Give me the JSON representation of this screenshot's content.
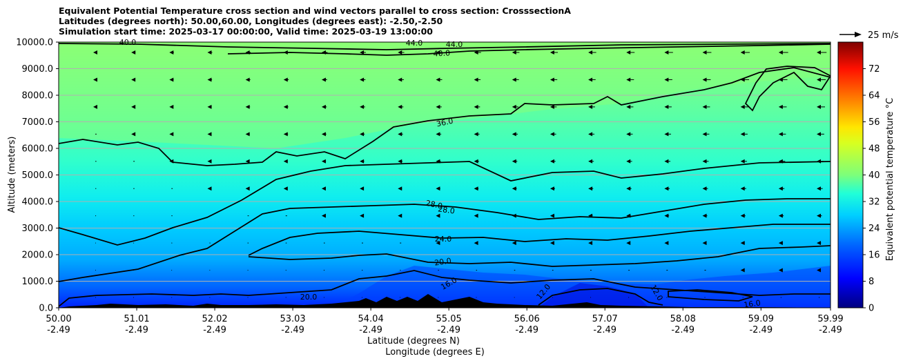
{
  "chart_data": {
    "type": "heatmap",
    "title_lines": [
      "Equivalent Potential Temperature cross section and wind vectors parallel to cross section: CrosssectionA",
      "Latitudes (degrees north): 50.00,60.00, Longitudes (degrees east): -2.50,-2.50",
      "Simulation start time: 2025-03-17 00:00:00, Valid time: 2025-03-19 13:00:00"
    ],
    "ylabel": "Altitude (meters)",
    "xlabel_lines": [
      "Latitude (degrees N)",
      "Longitude (degrees E)"
    ],
    "xlim": [
      50.0,
      59.99
    ],
    "ylim": [
      0,
      10000
    ],
    "x_ticks": [
      {
        "lat": "50.00",
        "lon": "-2.49"
      },
      {
        "lat": "51.01",
        "lon": "-2.49"
      },
      {
        "lat": "52.02",
        "lon": "-2.49"
      },
      {
        "lat": "53.03",
        "lon": "-2.49"
      },
      {
        "lat": "54.04",
        "lon": "-2.49"
      },
      {
        "lat": "55.05",
        "lon": "-2.49"
      },
      {
        "lat": "56.06",
        "lon": "-2.49"
      },
      {
        "lat": "57.07",
        "lon": "-2.49"
      },
      {
        "lat": "58.08",
        "lon": "-2.49"
      },
      {
        "lat": "59.09",
        "lon": "-2.49"
      },
      {
        "lat": "59.99",
        "lon": "-2.49"
      }
    ],
    "y_ticks": [
      "0.0",
      "1000.0",
      "2000.0",
      "3000.0",
      "4000.0",
      "5000.0",
      "6000.0",
      "7000.0",
      "8000.0",
      "9000.0",
      "10000.0"
    ],
    "grid": "horizontal",
    "colorbar": {
      "label": "Equivalent potential temperature °C",
      "range": [
        0,
        80
      ],
      "ticks": [
        "0",
        "8",
        "16",
        "24",
        "32",
        "40",
        "48",
        "56",
        "64",
        "72"
      ],
      "colormap": "jet"
    },
    "quiver_key": {
      "label": "25 m/s",
      "speed": 25
    },
    "contour_labels": [
      "44.0",
      "40.0",
      "36.0",
      "28.0",
      "24.0",
      "20.0",
      "16.0",
      "12.0"
    ],
    "terrain": "black filled orography along surface",
    "colors": {
      "terrain": "#000000",
      "contour": "#000000",
      "grid": "#b0b0b0"
    }
  }
}
